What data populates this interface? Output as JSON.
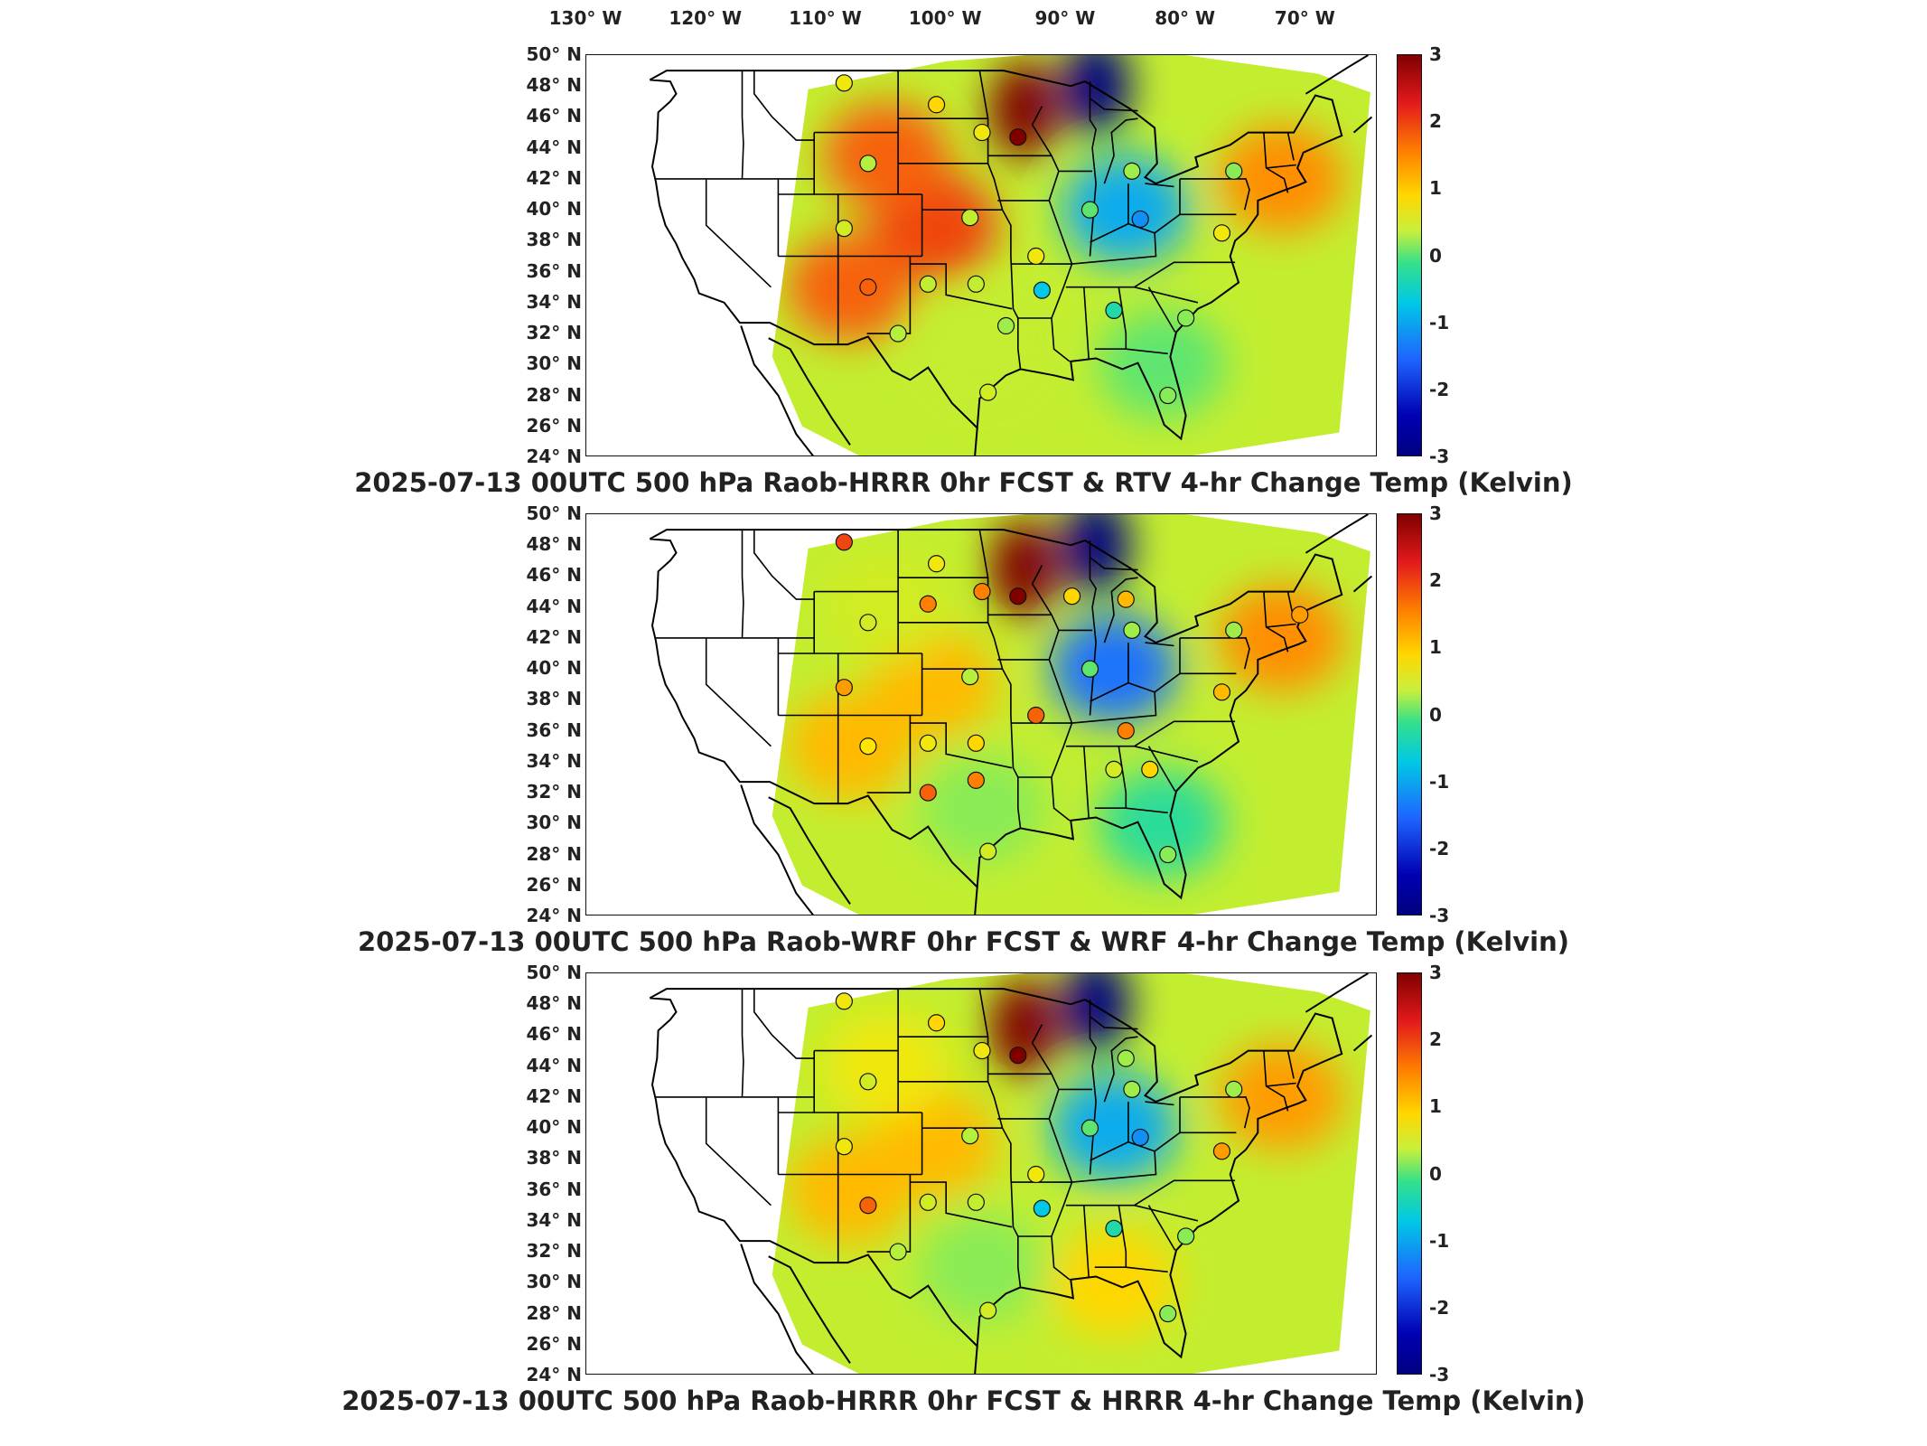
{
  "longitude_labels": [
    "130° W",
    "120° W",
    "110° W",
    "100° W",
    "90° W",
    "80° W",
    "70° W"
  ],
  "latitude_labels": [
    "50° N",
    "48° N",
    "46° N",
    "44° N",
    "42° N",
    "40° N",
    "38° N",
    "36° N",
    "34° N",
    "32° N",
    "30° N",
    "28° N",
    "26° N",
    "24° N"
  ],
  "colorbar": {
    "ticks": [
      "3",
      "2",
      "1",
      "0",
      "-1",
      "-2",
      "-3"
    ],
    "min": -3,
    "max": 3,
    "colors": [
      "#800000",
      "#e31a1c",
      "#ff7f00",
      "#ffd700",
      "#33e08a",
      "#00c8e6",
      "#1e64ff",
      "#000080"
    ]
  },
  "panels": [
    {
      "title": "2025-07-13 00UTC 500 hPa Raob-HRRR 0hr FCST & RTV 4-hr Change Temp (Kelvin)",
      "field": [
        {
          "lon": -93.5,
          "lat": 46.5,
          "value": 3.0
        },
        {
          "lon": -87.5,
          "lat": 48.0,
          "value": -3.0
        },
        {
          "lon": -101.0,
          "lat": 39.0,
          "value": 2.0
        },
        {
          "lon": -105.0,
          "lat": 43.5,
          "value": 1.8
        },
        {
          "lon": -108.0,
          "lat": 35.0,
          "value": 1.8
        },
        {
          "lon": -72.0,
          "lat": 42.0,
          "value": 1.5
        },
        {
          "lon": -85.0,
          "lat": 40.0,
          "value": -1.0
        },
        {
          "lon": -82.0,
          "lat": 30.0,
          "value": 0.0
        },
        {
          "lon": -97.0,
          "lat": 31.0,
          "value": 0.5
        }
      ],
      "stations": [
        {
          "lon": -108.5,
          "lat": 48.2,
          "value": 0.8
        },
        {
          "lon": -100.8,
          "lat": 46.8,
          "value": 1.0
        },
        {
          "lon": -97.0,
          "lat": 45.0,
          "value": 0.8
        },
        {
          "lon": -106.5,
          "lat": 43.0,
          "value": 0.4
        },
        {
          "lon": -94.0,
          "lat": 44.7,
          "value": 3.0
        },
        {
          "lon": -84.5,
          "lat": 42.5,
          "value": 0.3
        },
        {
          "lon": -76.0,
          "lat": 42.5,
          "value": 0.2
        },
        {
          "lon": -88.0,
          "lat": 40.0,
          "value": 0.0
        },
        {
          "lon": -83.8,
          "lat": 39.4,
          "value": -1.2
        },
        {
          "lon": -98.0,
          "lat": 39.5,
          "value": 0.5
        },
        {
          "lon": -108.5,
          "lat": 38.8,
          "value": 0.6
        },
        {
          "lon": -92.5,
          "lat": 37.0,
          "value": 0.8
        },
        {
          "lon": -106.5,
          "lat": 35.0,
          "value": 1.8
        },
        {
          "lon": -101.5,
          "lat": 35.2,
          "value": 0.5
        },
        {
          "lon": -97.5,
          "lat": 35.2,
          "value": 0.5
        },
        {
          "lon": -92.0,
          "lat": 34.8,
          "value": -0.8
        },
        {
          "lon": -86.0,
          "lat": 33.5,
          "value": -0.4
        },
        {
          "lon": -80.0,
          "lat": 33.0,
          "value": 0.2
        },
        {
          "lon": -104.0,
          "lat": 32.0,
          "value": 0.4
        },
        {
          "lon": -95.0,
          "lat": 32.5,
          "value": 0.3
        },
        {
          "lon": -96.5,
          "lat": 28.2,
          "value": 0.6
        },
        {
          "lon": -81.5,
          "lat": 28.0,
          "value": 0.2
        },
        {
          "lon": -77.0,
          "lat": 38.5,
          "value": 0.8
        }
      ]
    },
    {
      "title": "2025-07-13 00UTC 500 hPa Raob-WRF 0hr FCST & WRF 4-hr Change Temp (Kelvin)",
      "field": [
        {
          "lon": -93.5,
          "lat": 46.5,
          "value": 3.0
        },
        {
          "lon": -87.5,
          "lat": 48.0,
          "value": -3.0
        },
        {
          "lon": -101.0,
          "lat": 39.0,
          "value": 1.2
        },
        {
          "lon": -108.0,
          "lat": 35.0,
          "value": 1.2
        },
        {
          "lon": -72.0,
          "lat": 42.0,
          "value": 1.5
        },
        {
          "lon": -86.0,
          "lat": 40.0,
          "value": -1.4
        },
        {
          "lon": -82.0,
          "lat": 30.0,
          "value": -0.3
        },
        {
          "lon": -97.0,
          "lat": 31.0,
          "value": 0.2
        },
        {
          "lon": -105.0,
          "lat": 44.0,
          "value": 0.6
        }
      ],
      "stations": [
        {
          "lon": -108.5,
          "lat": 48.2,
          "value": 2.0
        },
        {
          "lon": -100.8,
          "lat": 46.8,
          "value": 0.8
        },
        {
          "lon": -97.0,
          "lat": 45.0,
          "value": 1.6
        },
        {
          "lon": -106.5,
          "lat": 43.0,
          "value": 0.6
        },
        {
          "lon": -101.5,
          "lat": 44.2,
          "value": 1.6
        },
        {
          "lon": -94.0,
          "lat": 44.7,
          "value": 3.0
        },
        {
          "lon": -89.5,
          "lat": 44.7,
          "value": 1.0
        },
        {
          "lon": -85.0,
          "lat": 44.5,
          "value": 1.2
        },
        {
          "lon": -84.5,
          "lat": 42.5,
          "value": 0.3
        },
        {
          "lon": -76.0,
          "lat": 42.5,
          "value": 0.3
        },
        {
          "lon": -88.0,
          "lat": 40.0,
          "value": 0.0
        },
        {
          "lon": -98.0,
          "lat": 39.5,
          "value": 0.4
        },
        {
          "lon": -108.5,
          "lat": 38.8,
          "value": 1.4
        },
        {
          "lon": -92.5,
          "lat": 37.0,
          "value": 1.8
        },
        {
          "lon": -85.0,
          "lat": 36.0,
          "value": 1.6
        },
        {
          "lon": -106.5,
          "lat": 35.0,
          "value": 0.9
        },
        {
          "lon": -101.5,
          "lat": 35.2,
          "value": 0.8
        },
        {
          "lon": -97.5,
          "lat": 35.2,
          "value": 1.0
        },
        {
          "lon": -97.5,
          "lat": 32.8,
          "value": 1.6
        },
        {
          "lon": -101.5,
          "lat": 32.0,
          "value": 1.8
        },
        {
          "lon": -86.0,
          "lat": 33.5,
          "value": 0.6
        },
        {
          "lon": -83.0,
          "lat": 33.5,
          "value": 1.0
        },
        {
          "lon": -96.5,
          "lat": 28.2,
          "value": 0.6
        },
        {
          "lon": -81.5,
          "lat": 28.0,
          "value": 0.2
        },
        {
          "lon": -77.0,
          "lat": 38.5,
          "value": 1.2
        },
        {
          "lon": -70.5,
          "lat": 43.5,
          "value": 1.4
        }
      ]
    },
    {
      "title": "2025-07-13 00UTC 500 hPa Raob-HRRR 0hr FCST & HRRR 4-hr Change Temp (Kelvin)",
      "field": [
        {
          "lon": -93.5,
          "lat": 46.5,
          "value": 3.0
        },
        {
          "lon": -87.5,
          "lat": 48.0,
          "value": -3.0
        },
        {
          "lon": -101.0,
          "lat": 39.0,
          "value": 1.2
        },
        {
          "lon": -108.0,
          "lat": 36.0,
          "value": 1.2
        },
        {
          "lon": -72.0,
          "lat": 42.0,
          "value": 1.4
        },
        {
          "lon": -86.0,
          "lat": 40.0,
          "value": -1.0
        },
        {
          "lon": -86.0,
          "lat": 30.0,
          "value": 1.0
        },
        {
          "lon": -97.0,
          "lat": 31.0,
          "value": 0.2
        },
        {
          "lon": -105.0,
          "lat": 44.0,
          "value": 0.8
        }
      ],
      "stations": [
        {
          "lon": -108.5,
          "lat": 48.2,
          "value": 0.8
        },
        {
          "lon": -100.8,
          "lat": 46.8,
          "value": 1.0
        },
        {
          "lon": -97.0,
          "lat": 45.0,
          "value": 0.8
        },
        {
          "lon": -106.5,
          "lat": 43.0,
          "value": 0.6
        },
        {
          "lon": -94.0,
          "lat": 44.7,
          "value": 3.0
        },
        {
          "lon": -85.0,
          "lat": 44.5,
          "value": 0.3
        },
        {
          "lon": -84.5,
          "lat": 42.5,
          "value": 0.3
        },
        {
          "lon": -76.0,
          "lat": 42.5,
          "value": 0.3
        },
        {
          "lon": -88.0,
          "lat": 40.0,
          "value": 0.0
        },
        {
          "lon": -83.8,
          "lat": 39.4,
          "value": -1.2
        },
        {
          "lon": -98.0,
          "lat": 39.5,
          "value": 0.4
        },
        {
          "lon": -108.5,
          "lat": 38.8,
          "value": 0.8
        },
        {
          "lon": -92.5,
          "lat": 37.0,
          "value": 0.8
        },
        {
          "lon": -106.5,
          "lat": 35.0,
          "value": 1.8
        },
        {
          "lon": -101.5,
          "lat": 35.2,
          "value": 0.6
        },
        {
          "lon": -97.5,
          "lat": 35.2,
          "value": 0.5
        },
        {
          "lon": -92.0,
          "lat": 34.8,
          "value": -0.8
        },
        {
          "lon": -86.0,
          "lat": 33.5,
          "value": -0.4
        },
        {
          "lon": -80.0,
          "lat": 33.0,
          "value": 0.2
        },
        {
          "lon": -104.0,
          "lat": 32.0,
          "value": 0.4
        },
        {
          "lon": -96.5,
          "lat": 28.2,
          "value": 0.6
        },
        {
          "lon": -81.5,
          "lat": 28.0,
          "value": 0.2
        },
        {
          "lon": -77.0,
          "lat": 38.5,
          "value": 1.4
        }
      ]
    }
  ]
}
